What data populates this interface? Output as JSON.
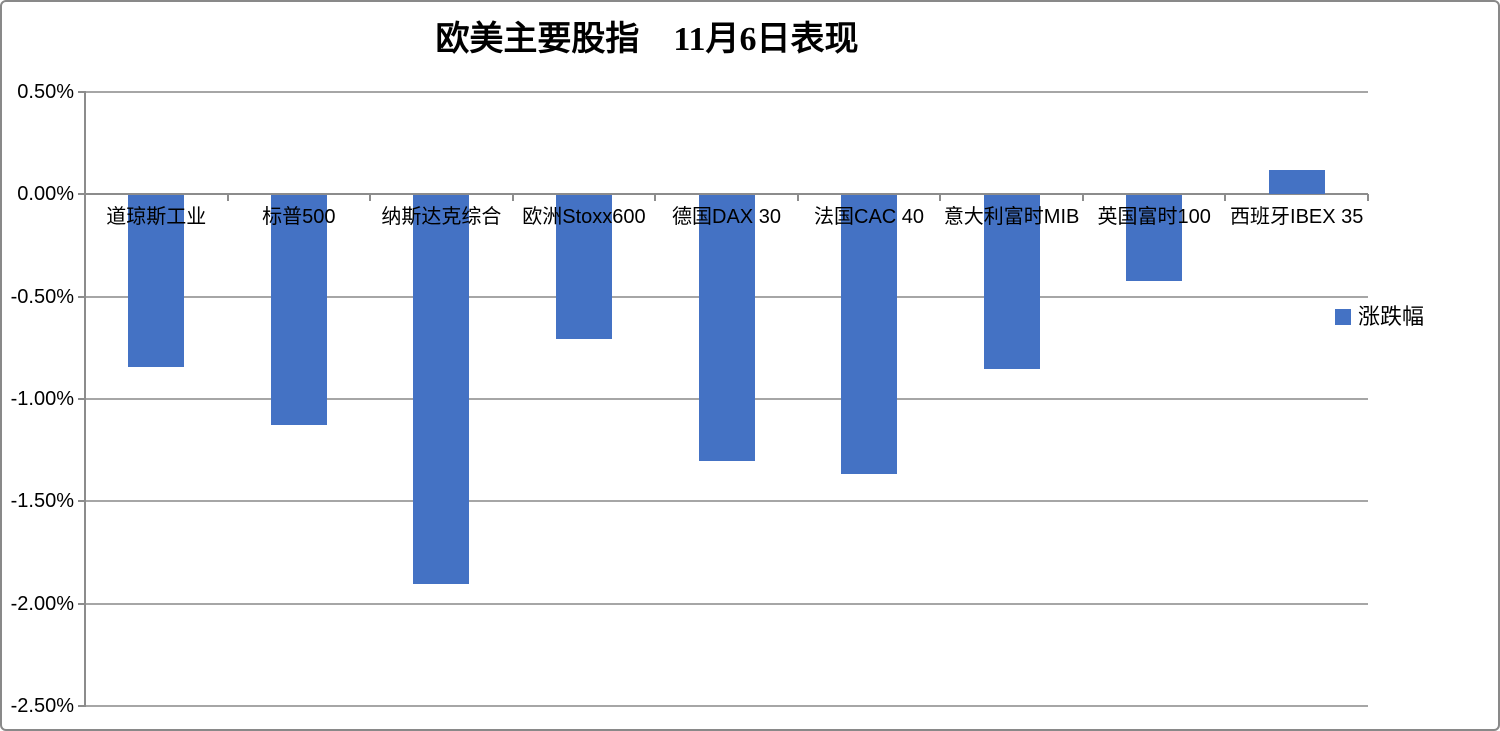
{
  "title": "欧美主要股指　11月6日表现",
  "legend": {
    "label": "涨跌幅"
  },
  "colors": {
    "bar": "#4472C4",
    "gridline": "#A6A6A6",
    "axis": "#8C8C8C",
    "frame_border": "#898989",
    "background": "#FFFFFF",
    "text": "#000000"
  },
  "y_axis": {
    "ticks": [
      {
        "label": "0.50%",
        "value": 0.5
      },
      {
        "label": "0.00%",
        "value": 0.0
      },
      {
        "label": "-0.50%",
        "value": -0.5
      },
      {
        "label": "-1.00%",
        "value": -1.0
      },
      {
        "label": "-1.50%",
        "value": -1.5
      },
      {
        "label": "-2.00%",
        "value": -2.0
      },
      {
        "label": "-2.50%",
        "value": -2.5
      }
    ]
  },
  "chart_data": {
    "type": "bar",
    "title": "欧美主要股指　11月6日表现",
    "categories": [
      "道琼斯工业",
      "标普500",
      "纳斯达克综合",
      "欧洲Stoxx600",
      "德国DAX 30",
      "法国CAC 40",
      "意大利富时MIB",
      "英国富时100",
      "西班牙IBEX 35"
    ],
    "series": [
      {
        "name": "涨跌幅",
        "values": [
          -0.84,
          -1.12,
          -1.9,
          -0.7,
          -1.3,
          -1.36,
          -0.85,
          -0.42,
          0.12
        ]
      }
    ],
    "unit": "percent",
    "ylim": [
      -2.5,
      0.5
    ],
    "ytick_step": 0.5,
    "grid": true,
    "legend_position": "right",
    "xlabel": "",
    "ylabel": ""
  }
}
